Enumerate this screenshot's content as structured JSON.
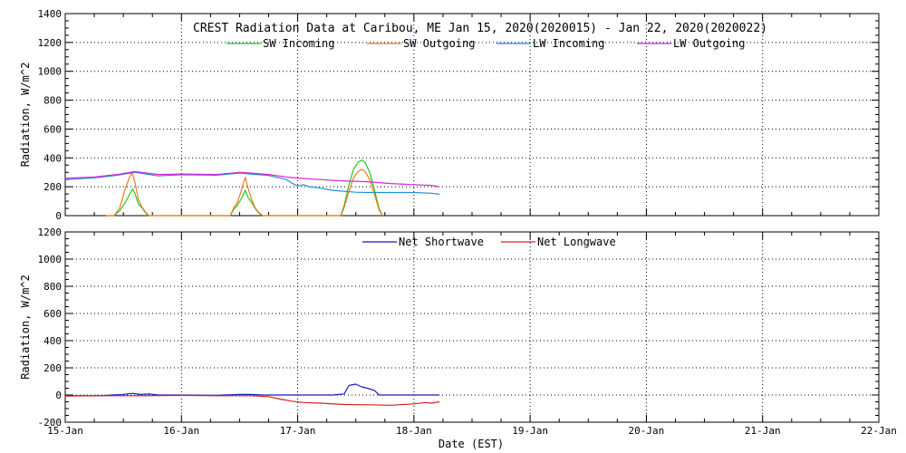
{
  "chart_data": [
    {
      "type": "line",
      "title": "CREST Radiation Data at Caribou, ME   Jan 15, 2020(2020015) - Jan 22, 2020(2020022)",
      "ylabel": "Radiation, W/m^2",
      "xlabel": "",
      "xlim": [
        15,
        22
      ],
      "ylim": [
        0,
        1400
      ],
      "yticks": [
        0,
        200,
        400,
        600,
        800,
        1000,
        1200,
        1400
      ],
      "grid": true,
      "legend": "top",
      "series": [
        {
          "name": "SW Incoming",
          "color": "#22c922",
          "points": [
            [
              15.35,
              0
            ],
            [
              15.42,
              0
            ],
            [
              15.47,
              35
            ],
            [
              15.52,
              95
            ],
            [
              15.555,
              150
            ],
            [
              15.58,
              185
            ],
            [
              15.6,
              150
            ],
            [
              15.63,
              80
            ],
            [
              15.66,
              55
            ],
            [
              15.69,
              20
            ],
            [
              15.72,
              0
            ],
            [
              16.35,
              0
            ],
            [
              16.42,
              0
            ],
            [
              16.45,
              45
            ],
            [
              16.48,
              70
            ],
            [
              16.51,
              110
            ],
            [
              16.535,
              150
            ],
            [
              16.55,
              175
            ],
            [
              16.57,
              130
            ],
            [
              16.6,
              95
            ],
            [
              16.63,
              55
            ],
            [
              16.66,
              20
            ],
            [
              16.7,
              0
            ],
            [
              17.33,
              0
            ],
            [
              17.37,
              0
            ],
            [
              17.4,
              70
            ],
            [
              17.44,
              210
            ],
            [
              17.48,
              320
            ],
            [
              17.52,
              370
            ],
            [
              17.55,
              385
            ],
            [
              17.58,
              370
            ],
            [
              17.62,
              300
            ],
            [
              17.66,
              180
            ],
            [
              17.7,
              50
            ],
            [
              17.73,
              0
            ]
          ]
        },
        {
          "name": "SW Outgoing",
          "color": "#f07b1e",
          "points": [
            [
              15.35,
              0
            ],
            [
              15.42,
              0
            ],
            [
              15.47,
              55
            ],
            [
              15.51,
              170
            ],
            [
              15.55,
              260
            ],
            [
              15.575,
              300
            ],
            [
              15.6,
              230
            ],
            [
              15.63,
              110
            ],
            [
              15.66,
              60
            ],
            [
              15.69,
              25
            ],
            [
              15.72,
              0
            ],
            [
              16.35,
              0
            ],
            [
              16.42,
              0
            ],
            [
              16.45,
              55
            ],
            [
              16.48,
              90
            ],
            [
              16.51,
              160
            ],
            [
              16.535,
              230
            ],
            [
              16.55,
              265
            ],
            [
              16.57,
              200
            ],
            [
              16.6,
              120
            ],
            [
              16.63,
              60
            ],
            [
              16.66,
              25
            ],
            [
              16.7,
              0
            ],
            [
              17.33,
              0
            ],
            [
              17.37,
              0
            ],
            [
              17.4,
              55
            ],
            [
              17.44,
              165
            ],
            [
              17.48,
              260
            ],
            [
              17.52,
              305
            ],
            [
              17.55,
              320
            ],
            [
              17.58,
              305
            ],
            [
              17.62,
              250
            ],
            [
              17.66,
              150
            ],
            [
              17.7,
              40
            ],
            [
              17.73,
              0
            ]
          ]
        },
        {
          "name": "LW Incoming",
          "color": "#1f8fd6",
          "points": [
            [
              15.0,
              250
            ],
            [
              15.25,
              262
            ],
            [
              15.45,
              280
            ],
            [
              15.6,
              300
            ],
            [
              15.8,
              275
            ],
            [
              16.0,
              283
            ],
            [
              16.3,
              280
            ],
            [
              16.5,
              295
            ],
            [
              16.6,
              288
            ],
            [
              16.75,
              278
            ],
            [
              16.9,
              252
            ],
            [
              16.95,
              225
            ],
            [
              17.0,
              205
            ],
            [
              17.05,
              215
            ],
            [
              17.1,
              200
            ],
            [
              17.2,
              190
            ],
            [
              17.3,
              175
            ],
            [
              17.4,
              168
            ],
            [
              17.5,
              162
            ],
            [
              17.6,
              160
            ],
            [
              17.8,
              160
            ],
            [
              18.0,
              160
            ],
            [
              18.15,
              155
            ],
            [
              18.22,
              148
            ]
          ]
        },
        {
          "name": "LW Outgoing",
          "color": "#d428d4",
          "points": [
            [
              15.0,
              258
            ],
            [
              15.25,
              268
            ],
            [
              15.45,
              285
            ],
            [
              15.6,
              305
            ],
            [
              15.8,
              285
            ],
            [
              16.0,
              288
            ],
            [
              16.3,
              285
            ],
            [
              16.5,
              300
            ],
            [
              16.6,
              295
            ],
            [
              16.75,
              285
            ],
            [
              16.9,
              268
            ],
            [
              17.0,
              260
            ],
            [
              17.2,
              250
            ],
            [
              17.35,
              242
            ],
            [
              17.5,
              238
            ],
            [
              17.6,
              235
            ],
            [
              17.8,
              222
            ],
            [
              18.0,
              215
            ],
            [
              18.15,
              210
            ],
            [
              18.22,
              200
            ]
          ]
        }
      ]
    },
    {
      "type": "line",
      "ylabel": "Radiation, W/m^2",
      "xlabel": "Date (EST)",
      "xlim": [
        15,
        22
      ],
      "ylim": [
        -200,
        1200
      ],
      "yticks": [
        -200,
        0,
        200,
        400,
        600,
        800,
        1000,
        1200
      ],
      "xticks": [
        "15-Jan",
        "16-Jan",
        "17-Jan",
        "18-Jan",
        "19-Jan",
        "20-Jan",
        "21-Jan",
        "22-Jan"
      ],
      "grid": true,
      "legend": "top",
      "series": [
        {
          "name": "Net Shortwave",
          "color": "#1a1ab8",
          "points": [
            [
              15.0,
              -5
            ],
            [
              15.3,
              -5
            ],
            [
              15.5,
              5
            ],
            [
              15.58,
              12
            ],
            [
              15.65,
              4
            ],
            [
              15.72,
              8
            ],
            [
              15.8,
              0
            ],
            [
              16.0,
              0
            ],
            [
              16.3,
              -2
            ],
            [
              16.5,
              5
            ],
            [
              16.6,
              4
            ],
            [
              16.7,
              0
            ],
            [
              17.0,
              0
            ],
            [
              17.3,
              0
            ],
            [
              17.4,
              8
            ],
            [
              17.44,
              70
            ],
            [
              17.5,
              80
            ],
            [
              17.55,
              60
            ],
            [
              17.6,
              50
            ],
            [
              17.66,
              35
            ],
            [
              17.7,
              0
            ],
            [
              18.0,
              0
            ],
            [
              18.22,
              0
            ]
          ]
        },
        {
          "name": "Net Longwave",
          "color": "#d42020",
          "points": [
            [
              15.0,
              -8
            ],
            [
              15.3,
              -5
            ],
            [
              15.5,
              -5
            ],
            [
              15.7,
              -5
            ],
            [
              16.0,
              -3
            ],
            [
              16.3,
              -5
            ],
            [
              16.6,
              -5
            ],
            [
              16.75,
              -12
            ],
            [
              16.85,
              -30
            ],
            [
              16.95,
              -45
            ],
            [
              17.05,
              -55
            ],
            [
              17.2,
              -60
            ],
            [
              17.4,
              -70
            ],
            [
              17.6,
              -72
            ],
            [
              17.8,
              -75
            ],
            [
              18.0,
              -65
            ],
            [
              18.1,
              -55
            ],
            [
              18.15,
              -60
            ],
            [
              18.22,
              -50
            ]
          ]
        }
      ]
    }
  ]
}
